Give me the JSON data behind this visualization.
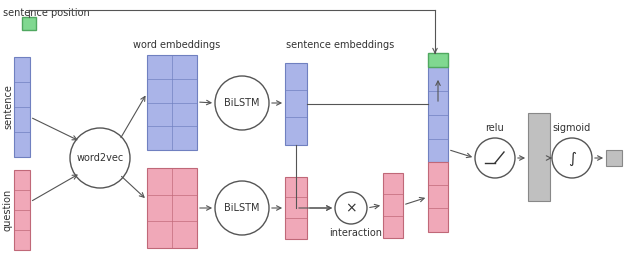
{
  "bg_color": "#ffffff",
  "sentence_color": "#aab4e8",
  "sentence_edge": "#7080c0",
  "question_color": "#f0a8b8",
  "question_edge": "#c06878",
  "green_color": "#80d890",
  "green_edge": "#50a860",
  "gray_color": "#c0c0c0",
  "gray_edge": "#888888",
  "text_color": "#333333",
  "arrow_color": "#555555",
  "labels": {
    "sentence_position": "sentence position",
    "word_embeddings": "word embeddings",
    "sentence_embeddings": "sentence embeddings",
    "sentence": "sentence",
    "question": "question",
    "word2vec": "word2vec",
    "bilstm": "BiLSTM",
    "interaction": "interaction",
    "relu": "relu",
    "sigmoid": "sigmoid"
  }
}
